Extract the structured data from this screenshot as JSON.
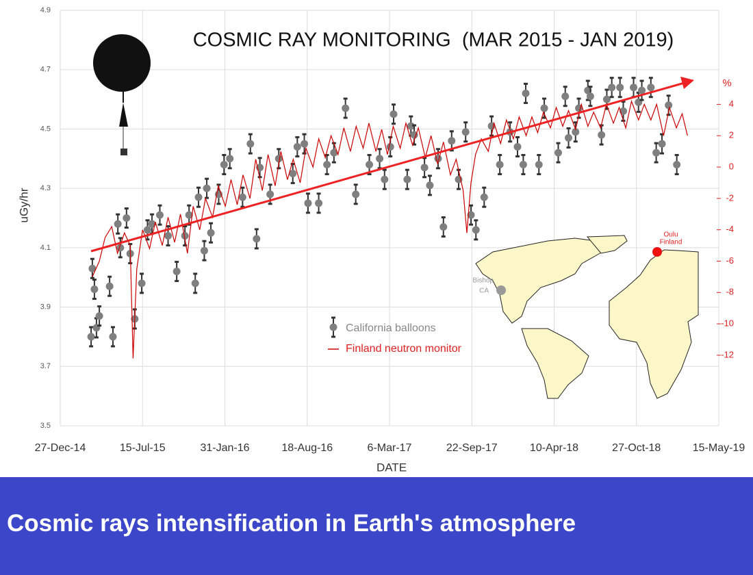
{
  "chart_data": {
    "type": "scatter",
    "title": "COSMIC RAY MONITORING  (MAR 2015 - JAN 2019)",
    "x_label": "DATE",
    "y_label": "uGy/hr",
    "y2_label": "%",
    "grid": true,
    "legend": "lower center",
    "annotations": [
      "Bishop",
      "CA",
      "Oulu",
      "Finland"
    ],
    "xlim": [
      "2014-12-27",
      "2019-05-15"
    ],
    "xticks": [
      {
        "value": "2014-12-27",
        "label": "27-Dec-14"
      },
      {
        "value": "2015-07-15",
        "label": "15-Jul-15"
      },
      {
        "value": "2016-01-31",
        "label": "31-Jan-16"
      },
      {
        "value": "2016-08-18",
        "label": "18-Aug-16"
      },
      {
        "value": "2017-03-06",
        "label": "6-Mar-17"
      },
      {
        "value": "2017-09-22",
        "label": "22-Sep-17"
      },
      {
        "value": "2018-04-10",
        "label": "10-Apr-18"
      },
      {
        "value": "2018-10-27",
        "label": "27-Oct-18"
      },
      {
        "value": "2019-05-15",
        "label": "15-May-19"
      }
    ],
    "ylim": [
      3.5,
      4.9
    ],
    "yticks": [
      3.5,
      3.7,
      3.9,
      4.1,
      4.3,
      4.5,
      4.7,
      4.9
    ],
    "y2lim": [
      -16.5,
      10
    ],
    "y2ticks": [
      -12,
      -10,
      -8,
      -6,
      -4,
      -2,
      0,
      2,
      4
    ],
    "series": [
      {
        "name": "California balloons",
        "type": "scatter",
        "color": "#7f7f7f",
        "x": [
          "2015-03-12",
          "2015-03-15",
          "2015-03-20",
          "2015-03-25",
          "2015-04-01",
          "2015-04-26",
          "2015-05-04",
          "2015-05-16",
          "2015-05-22",
          "2015-06-06",
          "2015-06-15",
          "2015-06-26",
          "2015-07-13",
          "2015-07-27",
          "2015-08-07",
          "2015-08-26",
          "2015-09-15",
          "2015-10-06",
          "2015-10-26",
          "2015-11-05",
          "2015-11-20",
          "2015-11-28",
          "2015-12-12",
          "2015-12-18",
          "2015-12-28",
          "2016-01-16",
          "2016-01-29",
          "2016-02-12",
          "2016-03-14",
          "2016-04-02",
          "2016-04-17",
          "2016-04-25",
          "2016-05-20",
          "2016-06-10",
          "2016-07-14",
          "2016-07-25",
          "2016-08-11",
          "2016-08-20",
          "2016-09-15",
          "2016-10-05",
          "2016-10-22",
          "2016-11-19",
          "2016-12-14",
          "2017-01-16",
          "2017-02-10",
          "2017-02-22",
          "2017-03-08",
          "2017-03-16",
          "2017-04-18",
          "2017-04-27",
          "2017-05-05",
          "2017-05-30",
          "2017-06-12",
          "2017-07-02",
          "2017-07-15",
          "2017-08-04",
          "2017-08-21",
          "2017-09-07",
          "2017-09-20",
          "2017-10-02",
          "2017-10-22",
          "2017-11-09",
          "2017-11-29",
          "2017-12-24",
          "2018-01-11",
          "2018-01-25",
          "2018-01-31",
          "2018-03-04",
          "2018-03-17",
          "2018-04-20",
          "2018-05-07",
          "2018-05-15",
          "2018-06-01",
          "2018-06-09",
          "2018-07-01",
          "2018-07-07",
          "2018-08-03",
          "2018-08-16",
          "2018-08-28",
          "2018-09-17",
          "2018-09-25",
          "2018-10-20",
          "2018-11-01",
          "2018-11-09",
          "2018-12-01",
          "2018-12-14",
          "2018-12-28",
          "2019-01-13",
          "2019-02-02"
        ],
        "values": [
          3.8,
          4.03,
          3.96,
          3.83,
          3.87,
          3.97,
          3.8,
          4.18,
          4.1,
          4.2,
          4.08,
          3.86,
          3.98,
          4.16,
          4.18,
          4.21,
          4.14,
          4.02,
          4.14,
          4.21,
          3.98,
          4.27,
          4.09,
          4.3,
          4.15,
          4.28,
          4.38,
          4.4,
          4.27,
          4.45,
          4.13,
          4.37,
          4.28,
          4.4,
          4.35,
          4.44,
          4.45,
          4.25,
          4.25,
          4.38,
          4.42,
          4.57,
          4.28,
          4.38,
          4.4,
          4.33,
          4.44,
          4.55,
          4.33,
          4.51,
          4.48,
          4.37,
          4.31,
          4.4,
          4.17,
          4.46,
          4.33,
          4.49,
          4.21,
          4.16,
          4.27,
          4.51,
          4.38,
          4.49,
          4.44,
          4.38,
          4.62,
          4.38,
          4.57,
          4.42,
          4.61,
          4.47,
          4.49,
          4.57,
          4.63,
          4.61,
          4.48,
          4.6,
          4.64,
          4.64,
          4.56,
          4.64,
          4.59,
          4.63,
          4.64,
          4.42,
          4.45,
          4.58,
          4.38
        ]
      },
      {
        "name": "Finland neutron monitor",
        "type": "line",
        "axis": "y2",
        "color": "#cc0000",
        "x": [
          "2015-03-15",
          "2015-04-01",
          "2015-04-15",
          "2015-05-01",
          "2015-05-15",
          "2015-06-01",
          "2015-06-15",
          "2015-06-22",
          "2015-07-01",
          "2015-07-15",
          "2015-08-01",
          "2015-08-15",
          "2015-09-01",
          "2015-09-15",
          "2015-10-01",
          "2015-10-15",
          "2015-11-01",
          "2015-11-15",
          "2015-12-01",
          "2015-12-15",
          "2016-01-01",
          "2016-01-15",
          "2016-02-01",
          "2016-02-15",
          "2016-03-01",
          "2016-03-15",
          "2016-04-01",
          "2016-04-15",
          "2016-05-01",
          "2016-05-15",
          "2016-06-01",
          "2016-06-15",
          "2016-07-01",
          "2016-07-15",
          "2016-08-01",
          "2016-08-15",
          "2016-09-01",
          "2016-09-15",
          "2016-10-01",
          "2016-10-15",
          "2016-11-01",
          "2016-11-15",
          "2016-12-01",
          "2016-12-15",
          "2017-01-01",
          "2017-01-15",
          "2017-02-01",
          "2017-02-15",
          "2017-03-01",
          "2017-03-15",
          "2017-04-01",
          "2017-04-15",
          "2017-05-01",
          "2017-05-15",
          "2017-06-01",
          "2017-06-15",
          "2017-07-01",
          "2017-07-15",
          "2017-08-01",
          "2017-08-15",
          "2017-09-01",
          "2017-09-10",
          "2017-09-20",
          "2017-10-01",
          "2017-10-15",
          "2017-11-01",
          "2017-11-15",
          "2017-12-01",
          "2017-12-15",
          "2018-01-01",
          "2018-01-15",
          "2018-02-01",
          "2018-02-15",
          "2018-03-01",
          "2018-03-15",
          "2018-04-01",
          "2018-04-15",
          "2018-05-01",
          "2018-05-15",
          "2018-06-01",
          "2018-06-15",
          "2018-07-01",
          "2018-07-15",
          "2018-08-01",
          "2018-08-15",
          "2018-09-01",
          "2018-09-15",
          "2018-10-01",
          "2018-10-15",
          "2018-11-01",
          "2018-11-15",
          "2018-12-01",
          "2018-12-15",
          "2019-01-01",
          "2019-01-15",
          "2019-02-01",
          "2019-02-15",
          "2019-02-28"
        ],
        "values": [
          -7.0,
          -6.0,
          -4.5,
          -3.8,
          -5.5,
          -4.2,
          -5.0,
          -12.2,
          -6.5,
          -4.0,
          -5.2,
          -3.5,
          -5.0,
          -3.2,
          -4.8,
          -3.0,
          -5.5,
          -2.5,
          -4.0,
          -2.0,
          -3.2,
          -1.2,
          -2.5,
          -0.8,
          -2.4,
          -0.5,
          -2.0,
          0.5,
          -1.5,
          0.8,
          -1.2,
          1.0,
          -0.8,
          0.5,
          -1.0,
          1.2,
          0.0,
          1.8,
          0.6,
          2.0,
          0.8,
          2.5,
          1.0,
          2.6,
          1.2,
          2.8,
          1.0,
          2.4,
          0.8,
          2.6,
          1.2,
          2.8,
          1.4,
          2.5,
          0.6,
          2.0,
          0.2,
          1.6,
          -0.5,
          0.5,
          -1.5,
          -4.2,
          -1.0,
          0.8,
          1.8,
          1.0,
          2.8,
          1.5,
          3.0,
          1.8,
          3.2,
          2.0,
          3.2,
          2.2,
          3.5,
          2.5,
          3.8,
          2.6,
          3.6,
          2.4,
          4.0,
          2.6,
          3.5,
          2.5,
          4.0,
          2.8,
          3.8,
          2.5,
          4.2,
          3.0,
          4.0,
          3.0,
          4.0,
          2.0,
          3.8,
          2.5,
          3.4,
          2.0
        ]
      }
    ]
  },
  "caption": "Cosmic rays intensification in Earth's atmosphere"
}
